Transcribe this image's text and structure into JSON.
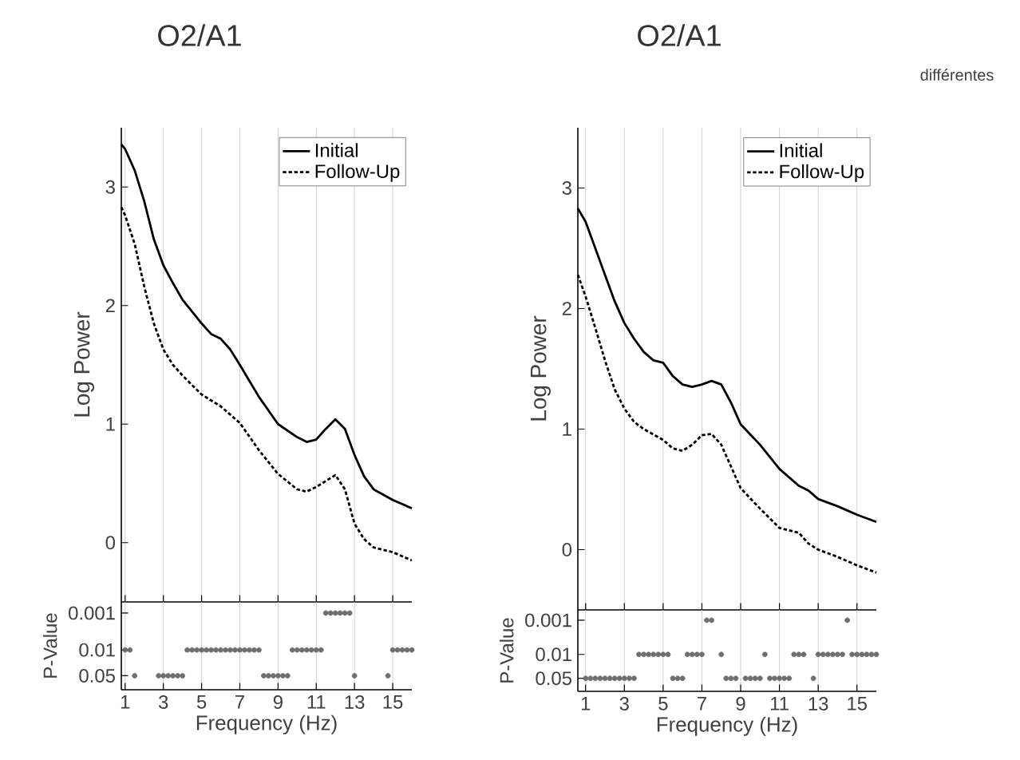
{
  "chart_data": [
    {
      "type": "line",
      "title": "O2/A1",
      "ylabel": "Log Power",
      "xlim": [
        0.8,
        16
      ],
      "ylim": [
        -0.5,
        3.5
      ],
      "xticks": [
        1,
        3,
        5,
        7,
        9,
        11,
        13,
        15
      ],
      "yticks": [
        0,
        1,
        2,
        3
      ],
      "tick_labels": "y",
      "grid": "x",
      "legend": "top right",
      "series": [
        {
          "name": "Initial",
          "color": "#000000",
          "line_style": "solid",
          "x": [
            0.8,
            1,
            1.5,
            2,
            2.5,
            3,
            3.5,
            4,
            5,
            5.5,
            6,
            6.5,
            7,
            8,
            9,
            10,
            10.5,
            11,
            11.5,
            12,
            12.5,
            13,
            13.5,
            14,
            15,
            16
          ],
          "values": [
            3.36,
            3.32,
            3.14,
            2.88,
            2.56,
            2.34,
            2.19,
            2.05,
            1.85,
            1.76,
            1.72,
            1.63,
            1.5,
            1.23,
            1.0,
            0.89,
            0.85,
            0.87,
            0.96,
            1.04,
            0.96,
            0.74,
            0.56,
            0.45,
            0.36,
            0.29
          ]
        },
        {
          "name": "Follow-Up",
          "color": "#000000",
          "line_style": "dashed",
          "x": [
            0.8,
            1,
            1.5,
            2,
            2.5,
            3,
            3.5,
            4,
            5,
            6,
            7,
            8,
            9,
            10,
            10.5,
            11,
            12,
            12.5,
            13,
            13.5,
            14,
            15,
            16
          ],
          "values": [
            2.83,
            2.76,
            2.52,
            2.16,
            1.85,
            1.63,
            1.5,
            1.41,
            1.25,
            1.15,
            1.01,
            0.78,
            0.58,
            0.45,
            0.43,
            0.47,
            0.57,
            0.45,
            0.16,
            0.03,
            -0.04,
            -0.08,
            -0.15
          ]
        }
      ]
    },
    {
      "type": "scatter",
      "xlabel": "Frequency (Hz)",
      "ylabel": "P-Value",
      "xlim": [
        0.8,
        16
      ],
      "ylim": [
        0.12,
        0.0005
      ],
      "log": "y",
      "xticks": [
        1,
        3,
        5,
        7,
        9,
        11,
        13,
        15
      ],
      "yticks": [
        0.05,
        0.01,
        0.001
      ],
      "grid": "x",
      "x": [
        1,
        1.25,
        1.5,
        1.75,
        2,
        2.25,
        2.5,
        2.75,
        3,
        3.25,
        3.5,
        3.75,
        4,
        4.25,
        4.5,
        4.75,
        5,
        5.25,
        5.5,
        5.75,
        6,
        6.25,
        6.5,
        6.75,
        7,
        7.25,
        7.5,
        7.75,
        8,
        8.25,
        8.5,
        8.75,
        9,
        9.25,
        9.5,
        9.75,
        10,
        10.25,
        10.5,
        10.75,
        11,
        11.25,
        11.5,
        11.75,
        12,
        12.25,
        12.5,
        12.75,
        13,
        13.25,
        13.5,
        13.75,
        14,
        14.25,
        14.5,
        14.75,
        15,
        15.25,
        15.5,
        15.75,
        16
      ],
      "series": [
        {
          "color": "#6e6e6e",
          "values": [
            0.01,
            0.01,
            0.05,
            null,
            null,
            null,
            null,
            0.05,
            0.05,
            0.05,
            0.05,
            0.05,
            0.05,
            0.01,
            0.01,
            0.01,
            0.01,
            0.01,
            0.01,
            0.01,
            0.01,
            0.01,
            0.01,
            0.01,
            0.01,
            0.01,
            0.01,
            0.01,
            0.01,
            0.05,
            0.05,
            0.05,
            0.05,
            0.05,
            0.05,
            0.01,
            0.01,
            0.01,
            0.01,
            0.01,
            0.01,
            0.01,
            0.001,
            0.001,
            0.001,
            0.001,
            0.001,
            0.001,
            0.05,
            null,
            null,
            null,
            null,
            null,
            null,
            0.05,
            0.01,
            0.01,
            0.01,
            0.01,
            0.01
          ]
        }
      ]
    },
    {
      "type": "line",
      "title": "O2/A1",
      "ylabel": "Log Power",
      "xlim": [
        0.6,
        16
      ],
      "ylim": [
        -0.5,
        3.5
      ],
      "xticks": [
        1,
        3,
        5,
        7,
        9,
        11,
        13,
        15
      ],
      "yticks": [
        0,
        1,
        2,
        3
      ],
      "tick_labels": "y",
      "grid": "x",
      "legend": "top right",
      "annotations": [
        "différentes"
      ],
      "series": [
        {
          "name": "Initial",
          "color": "#000000",
          "line_style": "solid",
          "x": [
            0.6,
            1,
            1.5,
            2,
            2.5,
            3,
            3.5,
            4,
            4.5,
            5,
            5.5,
            6,
            6.5,
            7,
            7.5,
            8,
            8.5,
            9,
            10,
            11,
            12,
            12.5,
            13,
            14,
            15,
            16
          ],
          "values": [
            2.83,
            2.72,
            2.5,
            2.28,
            2.06,
            1.88,
            1.75,
            1.64,
            1.57,
            1.55,
            1.44,
            1.37,
            1.35,
            1.37,
            1.4,
            1.37,
            1.22,
            1.04,
            0.87,
            0.67,
            0.53,
            0.49,
            0.42,
            0.36,
            0.29,
            0.23
          ]
        },
        {
          "name": "Follow-Up",
          "color": "#000000",
          "line_style": "dashed",
          "x": [
            0.6,
            1,
            1.5,
            2,
            2.5,
            3,
            3.5,
            4,
            5,
            5.5,
            6,
            6.5,
            7,
            7.5,
            8,
            8.5,
            9,
            10,
            11,
            12,
            12.5,
            13,
            14,
            15,
            16
          ],
          "values": [
            2.28,
            2.1,
            1.84,
            1.57,
            1.33,
            1.17,
            1.06,
            1.0,
            0.91,
            0.84,
            0.82,
            0.87,
            0.95,
            0.96,
            0.87,
            0.69,
            0.51,
            0.34,
            0.18,
            0.14,
            0.05,
            0.0,
            -0.06,
            -0.13,
            -0.19
          ]
        }
      ]
    },
    {
      "type": "scatter",
      "xlabel": "Frequency (Hz)",
      "ylabel": "P-Value",
      "xlim": [
        0.6,
        16
      ],
      "ylim": [
        0.12,
        0.0005
      ],
      "log": "y",
      "xticks": [
        1,
        3,
        5,
        7,
        9,
        11,
        13,
        15
      ],
      "yticks": [
        0.05,
        0.01,
        0.001
      ],
      "grid": "x",
      "x": [
        1,
        1.25,
        1.5,
        1.75,
        2,
        2.25,
        2.5,
        2.75,
        3,
        3.25,
        3.5,
        3.75,
        4,
        4.25,
        4.5,
        4.75,
        5,
        5.25,
        5.5,
        5.75,
        6,
        6.25,
        6.5,
        6.75,
        7,
        7.25,
        7.5,
        7.75,
        8,
        8.25,
        8.5,
        8.75,
        9,
        9.25,
        9.5,
        9.75,
        10,
        10.25,
        10.5,
        10.75,
        11,
        11.25,
        11.5,
        11.75,
        12,
        12.25,
        12.5,
        12.75,
        13,
        13.25,
        13.5,
        13.75,
        14,
        14.25,
        14.5,
        14.75,
        15,
        15.25,
        15.5,
        15.75,
        16
      ],
      "series": [
        {
          "color": "#6e6e6e",
          "values": [
            0.05,
            0.05,
            0.05,
            0.05,
            0.05,
            0.05,
            0.05,
            0.05,
            0.05,
            0.05,
            0.05,
            0.01,
            0.01,
            0.01,
            0.01,
            0.01,
            0.01,
            0.01,
            0.05,
            0.05,
            0.05,
            0.01,
            0.01,
            0.01,
            0.01,
            0.001,
            0.001,
            null,
            0.01,
            0.05,
            0.05,
            0.05,
            null,
            0.05,
            0.05,
            0.05,
            0.05,
            0.01,
            0.05,
            0.05,
            0.05,
            0.05,
            0.05,
            0.01,
            0.01,
            0.01,
            null,
            0.05,
            0.01,
            0.01,
            0.01,
            0.01,
            0.01,
            0.01,
            0.001,
            0.01,
            0.01,
            0.01,
            0.01,
            0.01,
            0.01
          ]
        }
      ]
    }
  ]
}
